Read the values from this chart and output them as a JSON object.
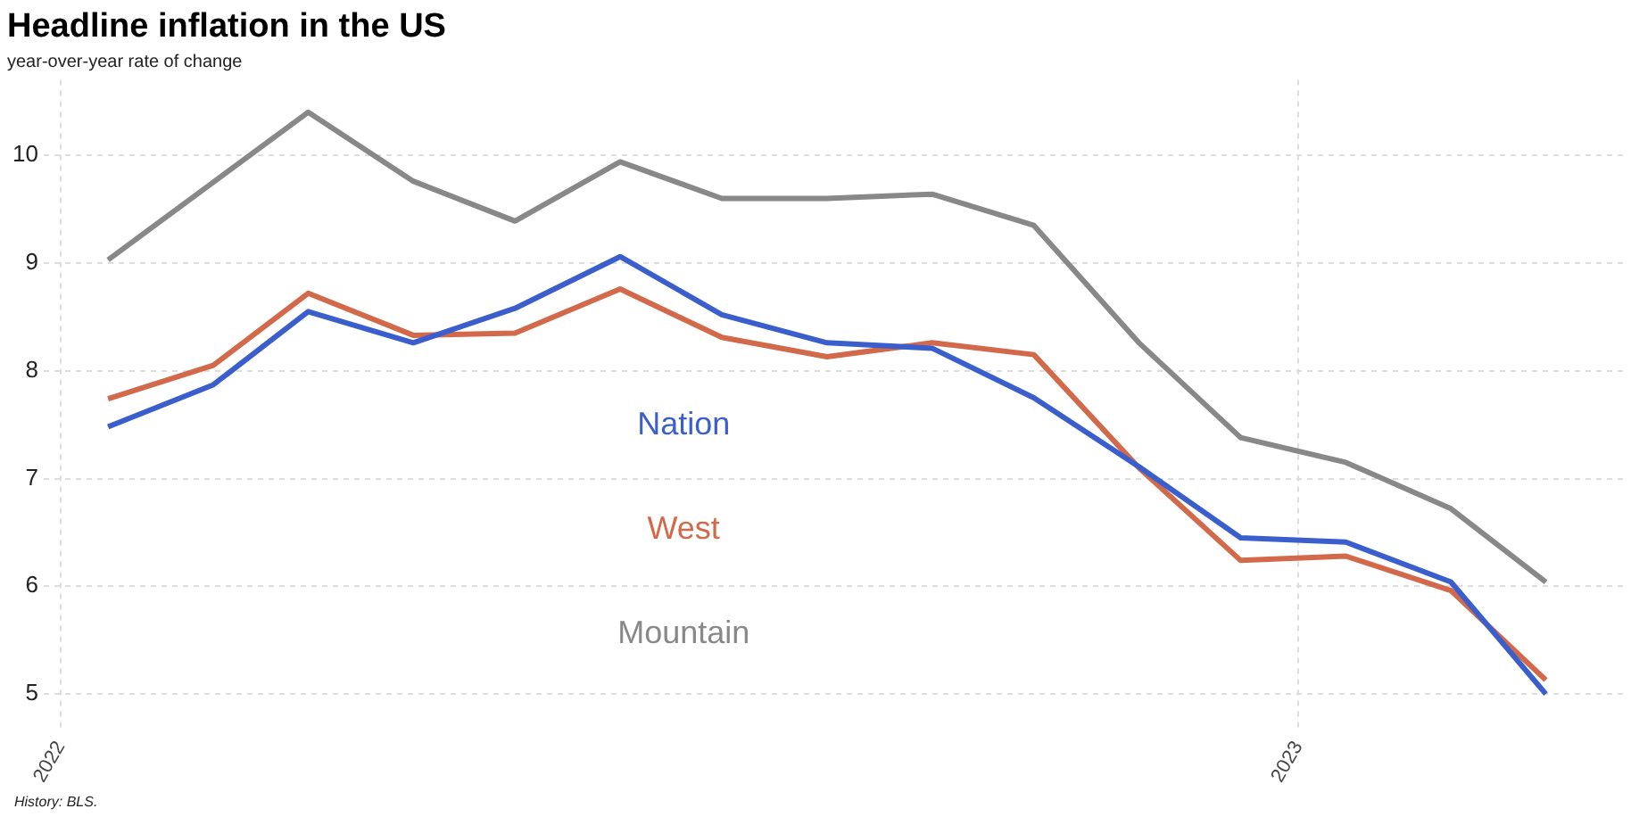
{
  "chart_data": {
    "type": "line",
    "title": "Headline inflation in the US",
    "subtitle": "year-over-year rate of change",
    "x": [
      "2022-01-15",
      "2022-02-15",
      "2022-03-15",
      "2022-04-15",
      "2022-05-15",
      "2022-06-15",
      "2022-07-15",
      "2022-08-15",
      "2022-09-15",
      "2022-10-15",
      "2022-11-15",
      "2022-12-15",
      "2023-01-15",
      "2023-02-15",
      "2023-03-15"
    ],
    "series": [
      {
        "name": "Nation",
        "color": "#3a5fcd",
        "values": [
          7.48,
          7.87,
          8.55,
          8.26,
          8.58,
          9.06,
          8.52,
          8.26,
          8.21,
          7.75,
          7.11,
          6.45,
          6.41,
          6.04,
          5.0
        ]
      },
      {
        "name": "West",
        "color": "#d2694a",
        "values": [
          7.74,
          8.05,
          8.72,
          8.33,
          8.35,
          8.76,
          8.31,
          8.13,
          8.26,
          8.15,
          7.1,
          6.24,
          6.28,
          5.96,
          5.13
        ]
      },
      {
        "name": "Mountain",
        "color": "#888888",
        "values": [
          9.03,
          9.75,
          10.4,
          9.76,
          9.39,
          9.94,
          9.6,
          9.6,
          9.64,
          9.35,
          8.26,
          7.38,
          7.15,
          6.72,
          6.04
        ]
      }
    ],
    "xlim": [
      "2021-12-27",
      "2023-04-07"
    ],
    "xticks": [
      {
        "value": "2022-01-01",
        "label": "2022"
      },
      {
        "value": "2023-01-01",
        "label": "2023"
      }
    ],
    "ylim": [
      4.65,
      10.7
    ],
    "yticks": [
      5,
      6,
      7,
      8,
      9,
      10
    ],
    "grid": true,
    "legend": false,
    "marker": "none",
    "line_style": "solid",
    "annotations": [
      "History: BLS."
    ]
  }
}
